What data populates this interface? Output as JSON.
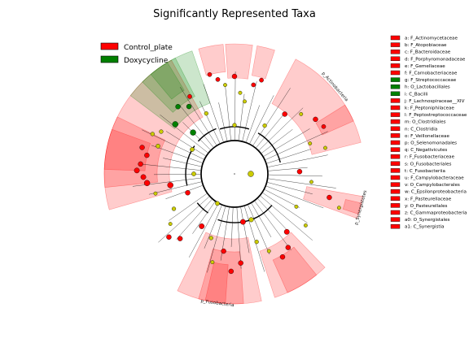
{
  "chart_data": {
    "type": "cladogram",
    "title": "Significantly Represented Taxa",
    "legend": [
      {
        "name": "Control_plate",
        "color": "#ff0000"
      },
      {
        "name": "Doxycycline",
        "color": "#008000"
      }
    ],
    "colors": {
      "control": "#ff0000",
      "doxycycline": "#008000",
      "nonsignificant": "#cccc00"
    },
    "key": [
      {
        "code": "a",
        "label": "F_Actinomycetaceae",
        "group": "control"
      },
      {
        "code": "b",
        "label": "F_Atopobiaceae",
        "group": "control"
      },
      {
        "code": "c",
        "label": "F_Bacteroidaceae",
        "group": "control"
      },
      {
        "code": "d",
        "label": "F_Porphyromonadaceae",
        "group": "control"
      },
      {
        "code": "e",
        "label": "F_Gemellaceae",
        "group": "control"
      },
      {
        "code": "f",
        "label": "F_Carnobacteriaceae",
        "group": "control"
      },
      {
        "code": "g",
        "label": "F_Streptococcaceae",
        "group": "doxycycline"
      },
      {
        "code": "h",
        "label": "O_Lactobacillales",
        "group": "doxycycline"
      },
      {
        "code": "i",
        "label": "C_Bacilli",
        "group": "doxycycline"
      },
      {
        "code": "j",
        "label": "F_Lachnospiraceae__XIV",
        "group": "control"
      },
      {
        "code": "k",
        "label": "F_Peptoniphilaceae",
        "group": "control"
      },
      {
        "code": "l",
        "label": "F_Peptostreptococcaceae",
        "group": "control"
      },
      {
        "code": "m",
        "label": "O_Clostridiales",
        "group": "control"
      },
      {
        "code": "n",
        "label": "C_Clostridia",
        "group": "control"
      },
      {
        "code": "o",
        "label": "F_Veillonellaceae",
        "group": "control"
      },
      {
        "code": "p",
        "label": "O_Selenomonadales",
        "group": "control"
      },
      {
        "code": "q",
        "label": "C_Negativicutes",
        "group": "control"
      },
      {
        "code": "r",
        "label": "F_Fusobacteriaceae",
        "group": "control"
      },
      {
        "code": "s",
        "label": "O_Fusobacteriales",
        "group": "control"
      },
      {
        "code": "t",
        "label": "C_Fusobacteriia",
        "group": "control"
      },
      {
        "code": "u",
        "label": "F_Campylobacteraceae",
        "group": "control"
      },
      {
        "code": "v",
        "label": "O_Campylobacterales",
        "group": "control"
      },
      {
        "code": "w",
        "label": "C_Epsilonproteobacteria",
        "group": "control"
      },
      {
        "code": "x",
        "label": "F_Pasteurellaceae",
        "group": "control"
      },
      {
        "code": "y",
        "label": "O_Pasteurellales",
        "group": "control"
      },
      {
        "code": "z",
        "label": "C_Gammaproteobacteria",
        "group": "control"
      },
      {
        "code": "a0",
        "label": "O_Synergistales",
        "group": "control"
      },
      {
        "code": "a1",
        "label": "C_Synergistia",
        "group": "control"
      }
    ],
    "clade_labels": [
      {
        "text": "p_Actinobacteria",
        "a1": 30,
        "a2": 68
      },
      {
        "text": "p_Synergistetes",
        "a1": 100,
        "a2": 110
      },
      {
        "text": "p_Fusobacteria",
        "a1": 175,
        "a2": 200
      }
    ]
  }
}
